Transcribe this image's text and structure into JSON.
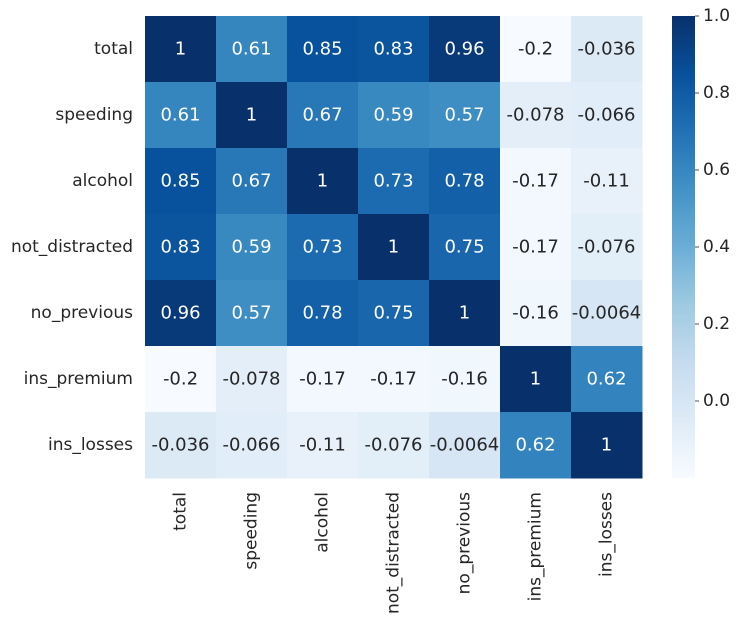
{
  "chart_data": {
    "type": "heatmap",
    "title": "",
    "xlabel": "",
    "ylabel": "",
    "colormap": "Blues",
    "rows": [
      "total",
      "speeding",
      "alcohol",
      "not_distracted",
      "no_previous",
      "ins_premium",
      "ins_losses"
    ],
    "columns": [
      "total",
      "speeding",
      "alcohol",
      "not_distracted",
      "no_previous",
      "ins_premium",
      "ins_losses"
    ],
    "values": [
      [
        1,
        0.61,
        0.85,
        0.83,
        0.96,
        -0.2,
        -0.036
      ],
      [
        0.61,
        1,
        0.67,
        0.59,
        0.57,
        -0.078,
        -0.066
      ],
      [
        0.85,
        0.67,
        1,
        0.73,
        0.78,
        -0.17,
        -0.11
      ],
      [
        0.83,
        0.59,
        0.73,
        1,
        0.75,
        -0.17,
        -0.076
      ],
      [
        0.96,
        0.57,
        0.78,
        0.75,
        1,
        -0.16,
        -0.0064
      ],
      [
        -0.2,
        -0.078,
        -0.17,
        -0.17,
        -0.16,
        1,
        0.62
      ],
      [
        -0.036,
        -0.066,
        -0.11,
        -0.076,
        -0.0064,
        0.62,
        1
      ]
    ],
    "cell_labels": [
      [
        "1",
        "0.61",
        "0.85",
        "0.83",
        "0.96",
        "-0.2",
        "-0.036"
      ],
      [
        "0.61",
        "1",
        "0.67",
        "0.59",
        "0.57",
        "-0.078",
        "-0.066"
      ],
      [
        "0.85",
        "0.67",
        "1",
        "0.73",
        "0.78",
        "-0.17",
        "-0.11"
      ],
      [
        "0.83",
        "0.59",
        "0.73",
        "1",
        "0.75",
        "-0.17",
        "-0.076"
      ],
      [
        "0.96",
        "0.57",
        "0.78",
        "0.75",
        "1",
        "-0.16",
        "-0.0064"
      ],
      [
        "-0.2",
        "-0.078",
        "-0.17",
        "-0.17",
        "-0.16",
        "1",
        "0.62"
      ],
      [
        "-0.036",
        "-0.066",
        "-0.11",
        "-0.076",
        "-0.0064",
        "0.62",
        "1"
      ]
    ],
    "colorbar": {
      "vmin": -0.2,
      "vmax": 1.0,
      "ticks": [
        0.0,
        0.2,
        0.4,
        0.6,
        0.8,
        1.0
      ],
      "tick_labels": [
        "0.0",
        "0.2",
        "0.4",
        "0.6",
        "0.8",
        "1.0"
      ]
    },
    "grid": false,
    "legend": "colorbar-right"
  }
}
